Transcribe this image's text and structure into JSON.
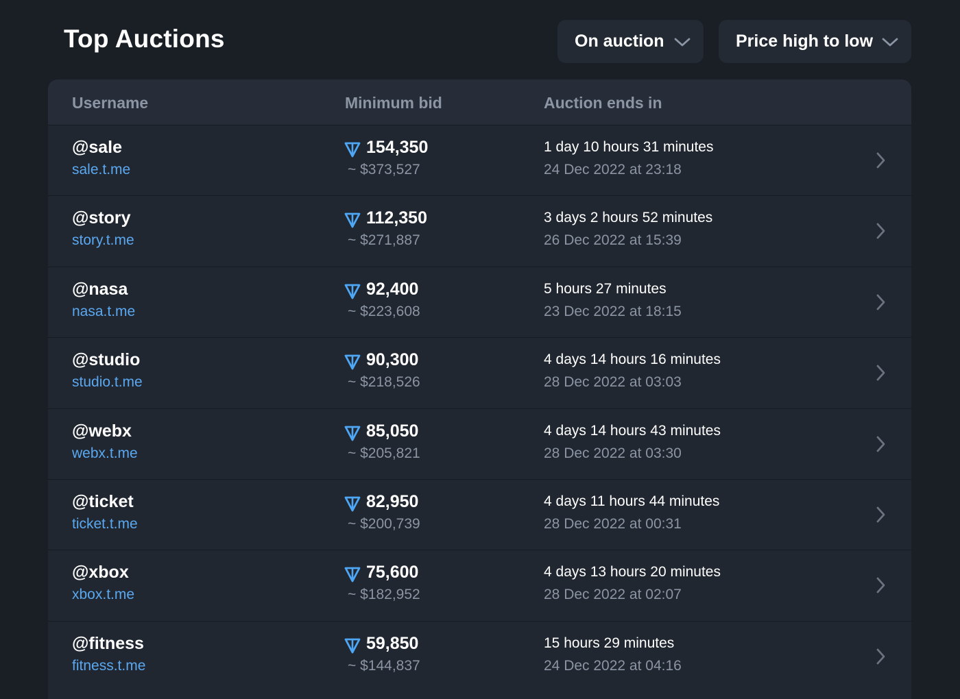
{
  "header": {
    "title": "Top Auctions",
    "filter_status": "On auction",
    "sort_order": "Price high to low"
  },
  "table": {
    "columns": {
      "username": "Username",
      "min_bid": "Minimum bid",
      "ends_in": "Auction ends in"
    },
    "rows": [
      {
        "username": "@sale",
        "link": "sale.t.me",
        "bid": "154,350",
        "usd": "~ $373,527",
        "ends": "1 day 10 hours 31 minutes",
        "date": "24 Dec 2022 at 23:18"
      },
      {
        "username": "@story",
        "link": "story.t.me",
        "bid": "112,350",
        "usd": "~ $271,887",
        "ends": "3 days 2 hours 52 minutes",
        "date": "26 Dec 2022 at 15:39"
      },
      {
        "username": "@nasa",
        "link": "nasa.t.me",
        "bid": "92,400",
        "usd": "~ $223,608",
        "ends": "5 hours 27 minutes",
        "date": "23 Dec 2022 at 18:15"
      },
      {
        "username": "@studio",
        "link": "studio.t.me",
        "bid": "90,300",
        "usd": "~ $218,526",
        "ends": "4 days 14 hours 16 minutes",
        "date": "28 Dec 2022 at 03:03"
      },
      {
        "username": "@webx",
        "link": "webx.t.me",
        "bid": "85,050",
        "usd": "~ $205,821",
        "ends": "4 days 14 hours 43 minutes",
        "date": "28 Dec 2022 at 03:30"
      },
      {
        "username": "@ticket",
        "link": "ticket.t.me",
        "bid": "82,950",
        "usd": "~ $200,739",
        "ends": "4 days 11 hours 44 minutes",
        "date": "28 Dec 2022 at 00:31"
      },
      {
        "username": "@xbox",
        "link": "xbox.t.me",
        "bid": "75,600",
        "usd": "~ $182,952",
        "ends": "4 days 13 hours 20 minutes",
        "date": "28 Dec 2022 at 02:07"
      },
      {
        "username": "@fitness",
        "link": "fitness.t.me",
        "bid": "59,850",
        "usd": "~ $144,837",
        "ends": "15 hours 29 minutes",
        "date": "24 Dec 2022 at 04:16"
      }
    ]
  },
  "icons": {
    "currency": "ton-diamond-icon",
    "row_arrow": "chevron-right-icon",
    "dropdown": "chevron-down-icon"
  },
  "colors": {
    "background": "#1a1e25",
    "panel": "#212731",
    "link": "#5aa8f0",
    "muted": "#8b95a3",
    "ton": "#4ea7f5"
  }
}
